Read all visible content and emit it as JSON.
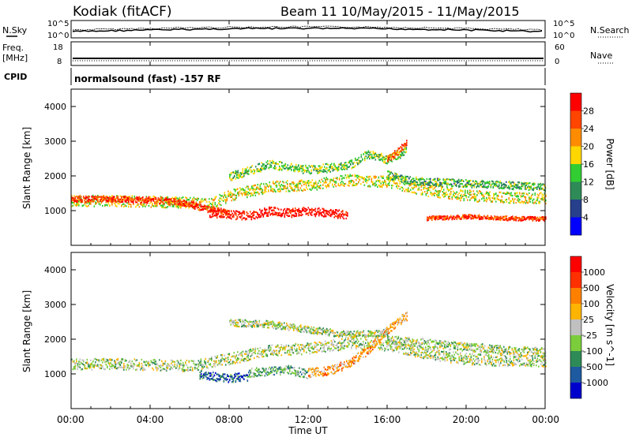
{
  "header": {
    "station": "Kodiak (fitACF)",
    "beam_period": "Beam 11  10/May/2015 - 11/May/2015"
  },
  "top_panels": {
    "nsky_label": "N.Sky",
    "nsky_ticks": [
      "10^5",
      "10^0"
    ],
    "nsearch_label": "N.Search",
    "nsearch_ticks": [
      "10^5",
      "10^0"
    ],
    "freq_label_1": "Freq.",
    "freq_label_2": "[MHz]",
    "freq_ticks": [
      "18",
      "8"
    ],
    "nave_label": "Nave",
    "nave_ticks": [
      "60",
      "0"
    ],
    "cpid_label": "CPID",
    "cpid_text": "normalsound (fast) -157 RF"
  },
  "chart_data": [
    {
      "type": "heatmap",
      "name": "power",
      "ylabel": "Slant Range [km]",
      "ylim": [
        0,
        4500
      ],
      "yticks": [
        "1000",
        "2000",
        "3000",
        "4000"
      ],
      "colorbar_label": "Power [dB]",
      "colorbar_ticks": [
        "4",
        "8",
        "12",
        "16",
        "20",
        "24",
        "28"
      ],
      "colors": [
        "#0000ff",
        "#27408b",
        "#2e8b57",
        "#32cd32",
        "#ffd700",
        "#ff8c00",
        "#ff4500",
        "#ff0000"
      ],
      "bands": [
        {
          "x": [
            0,
            2,
            4,
            6,
            7,
            8,
            10,
            12,
            14,
            16,
            18,
            20,
            22,
            24
          ],
          "y": [
            1300,
            1300,
            1280,
            1250,
            1200,
            1450,
            1700,
            1750,
            1900,
            1850,
            1600,
            1450,
            1400,
            1380
          ],
          "w": 320,
          "level": 0.55
        },
        {
          "x": [
            0,
            2,
            4,
            5,
            6,
            7,
            8
          ],
          "y": [
            1350,
            1350,
            1330,
            1300,
            1200,
            1050,
            950
          ],
          "w": 180,
          "level": 0.85
        },
        {
          "x": [
            7,
            8,
            9,
            10,
            11,
            12,
            13,
            14
          ],
          "y": [
            950,
            900,
            880,
            1000,
            950,
            1000,
            950,
            900
          ],
          "w": 250,
          "level": 0.95
        },
        {
          "x": [
            8,
            10,
            12,
            14,
            15,
            16,
            17
          ],
          "y": [
            2000,
            2350,
            2200,
            2300,
            2650,
            2500,
            2750
          ],
          "w": 250,
          "level": 0.45
        },
        {
          "x": [
            16,
            17,
            18,
            20,
            22,
            24
          ],
          "y": [
            2050,
            1900,
            1850,
            1800,
            1750,
            1700
          ],
          "w": 220,
          "level": 0.4
        },
        {
          "x": [
            18,
            19,
            20,
            22,
            24
          ],
          "y": [
            800,
            820,
            850,
            800,
            780
          ],
          "w": 120,
          "level": 0.85
        },
        {
          "x": [
            16,
            16.5,
            17
          ],
          "y": [
            2500,
            2700,
            3000
          ],
          "w": 200,
          "level": 0.8
        }
      ]
    },
    {
      "type": "heatmap",
      "name": "velocity",
      "ylabel": "Slant Range [km]",
      "ylim": [
        0,
        4500
      ],
      "yticks": [
        "1000",
        "2000",
        "3000",
        "4000"
      ],
      "colorbar_label": "Velocity [m s^-1]",
      "colorbar_ticks": [
        "1000",
        "500",
        "100",
        "25",
        "-25",
        "-100",
        "-500",
        "-1000"
      ],
      "colors": [
        "#0000cd",
        "#1e5aa0",
        "#2e8b57",
        "#7ccd3c",
        "#c0c0c0",
        "#ffb400",
        "#ff8000",
        "#ff3000",
        "#ff0000"
      ],
      "bands": [
        {
          "x": [
            0,
            2,
            4,
            6,
            8,
            10,
            12,
            14,
            16,
            18,
            20,
            22,
            24
          ],
          "y": [
            1300,
            1300,
            1280,
            1250,
            1450,
            1700,
            1750,
            1900,
            1850,
            1600,
            1450,
            1400,
            1380
          ],
          "w": 320,
          "level": 0.45
        },
        {
          "x": [
            6.5,
            7,
            8,
            9
          ],
          "y": [
            1000,
            950,
            900,
            950
          ],
          "w": 250,
          "level": 0.2
        },
        {
          "x": [
            9,
            10,
            11,
            12
          ],
          "y": [
            1050,
            1100,
            1150,
            1000
          ],
          "w": 250,
          "level": 0.35
        },
        {
          "x": [
            12,
            13,
            14,
            15,
            16,
            17
          ],
          "y": [
            1050,
            1100,
            1300,
            1700,
            2300,
            2700
          ],
          "w": 260,
          "level": 0.65
        },
        {
          "x": [
            8,
            10,
            12,
            14,
            16
          ],
          "y": [
            2500,
            2450,
            2300,
            2150,
            2200
          ],
          "w": 200,
          "level": 0.45
        },
        {
          "x": [
            16,
            18,
            20,
            22,
            24
          ],
          "y": [
            2000,
            1900,
            1800,
            1700,
            1650
          ],
          "w": 250,
          "level": 0.45
        }
      ]
    }
  ],
  "x_axis": {
    "label": "Time UT",
    "range": [
      0,
      24
    ],
    "ticks": [
      "00:00",
      "04:00",
      "08:00",
      "12:00",
      "16:00",
      "20:00",
      "00:00"
    ]
  }
}
